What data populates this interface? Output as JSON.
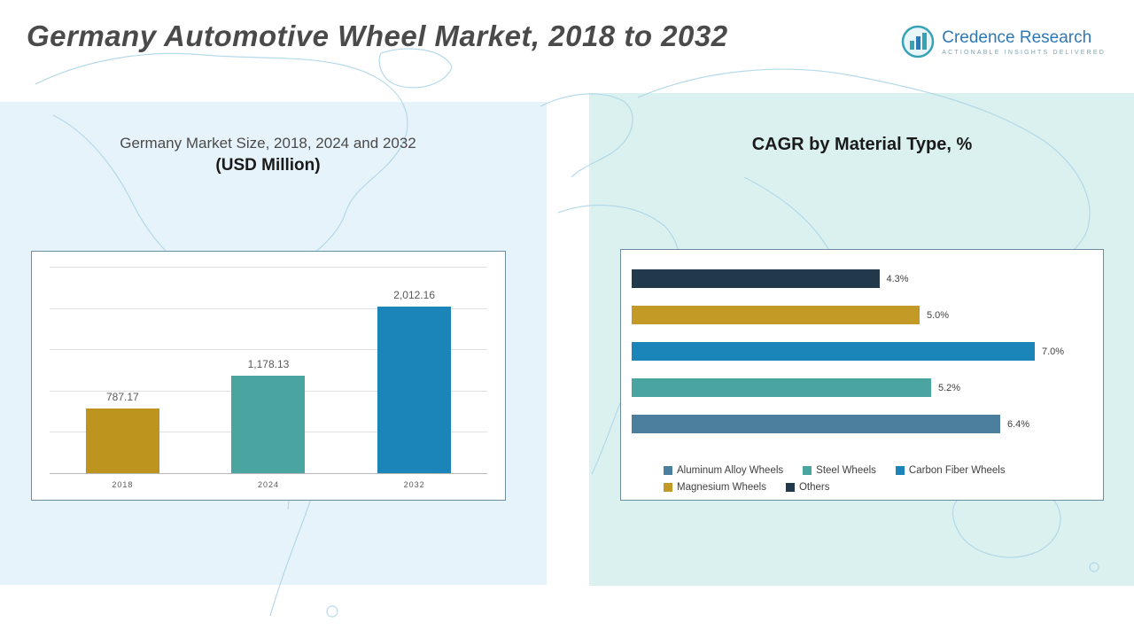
{
  "header": {
    "title": "Germany Automotive Wheel Market, 2018 to 2032",
    "logo": {
      "name": "Credence Research",
      "tagline": "Actionable Insights Delivered",
      "icon": "bar-chart-logo-icon",
      "brand_color": "#2e79b5",
      "accent_color": "#35a3b5"
    }
  },
  "left_chart": {
    "title_line1": "Germany Market Size, 2018, 2024 and 2032",
    "title_line2": "(USD Million)"
  },
  "right_chart": {
    "title": "CAGR by Material Type, %"
  },
  "chart_data": [
    {
      "type": "bar",
      "title": "Germany Market Size, 2018, 2024 and 2032 (USD Million)",
      "categories": [
        "2018",
        "2024",
        "2032"
      ],
      "values": [
        787.17,
        1178.13,
        2012.16
      ],
      "value_labels": [
        "787.17",
        "1,178.13",
        "2,012.16"
      ],
      "colors": [
        "#bd941e",
        "#4aa5a1",
        "#1b84b8"
      ],
      "ylabel": "",
      "xlabel": "",
      "ylim": [
        0,
        2500
      ],
      "grid": true,
      "legend_position": "none"
    },
    {
      "type": "bar-horizontal",
      "title": "CAGR by Material Type, %",
      "categories": [
        "Others",
        "Magnesium Wheels",
        "Carbon Fiber Wheels",
        "Steel Wheels",
        "Aluminum Alloy Wheels"
      ],
      "values": [
        4.3,
        5.0,
        7.0,
        5.2,
        6.4
      ],
      "value_labels": [
        "4.3%",
        "5.0%",
        "7.0%",
        "5.2%",
        "6.4%"
      ],
      "colors": [
        "#21394b",
        "#c49a27",
        "#1b84b8",
        "#4aa5a1",
        "#4c7e9e"
      ],
      "xlim": [
        0,
        8
      ],
      "grid": false,
      "legend_position": "bottom",
      "legend": [
        {
          "label": "Aluminum Alloy Wheels",
          "color": "#4c7e9e"
        },
        {
          "label": "Steel Wheels",
          "color": "#4aa5a1"
        },
        {
          "label": "Carbon Fiber Wheels",
          "color": "#1b84b8"
        },
        {
          "label": "Magnesium Wheels",
          "color": "#c49a27"
        },
        {
          "label": "Others",
          "color": "#21394b"
        }
      ]
    }
  ]
}
